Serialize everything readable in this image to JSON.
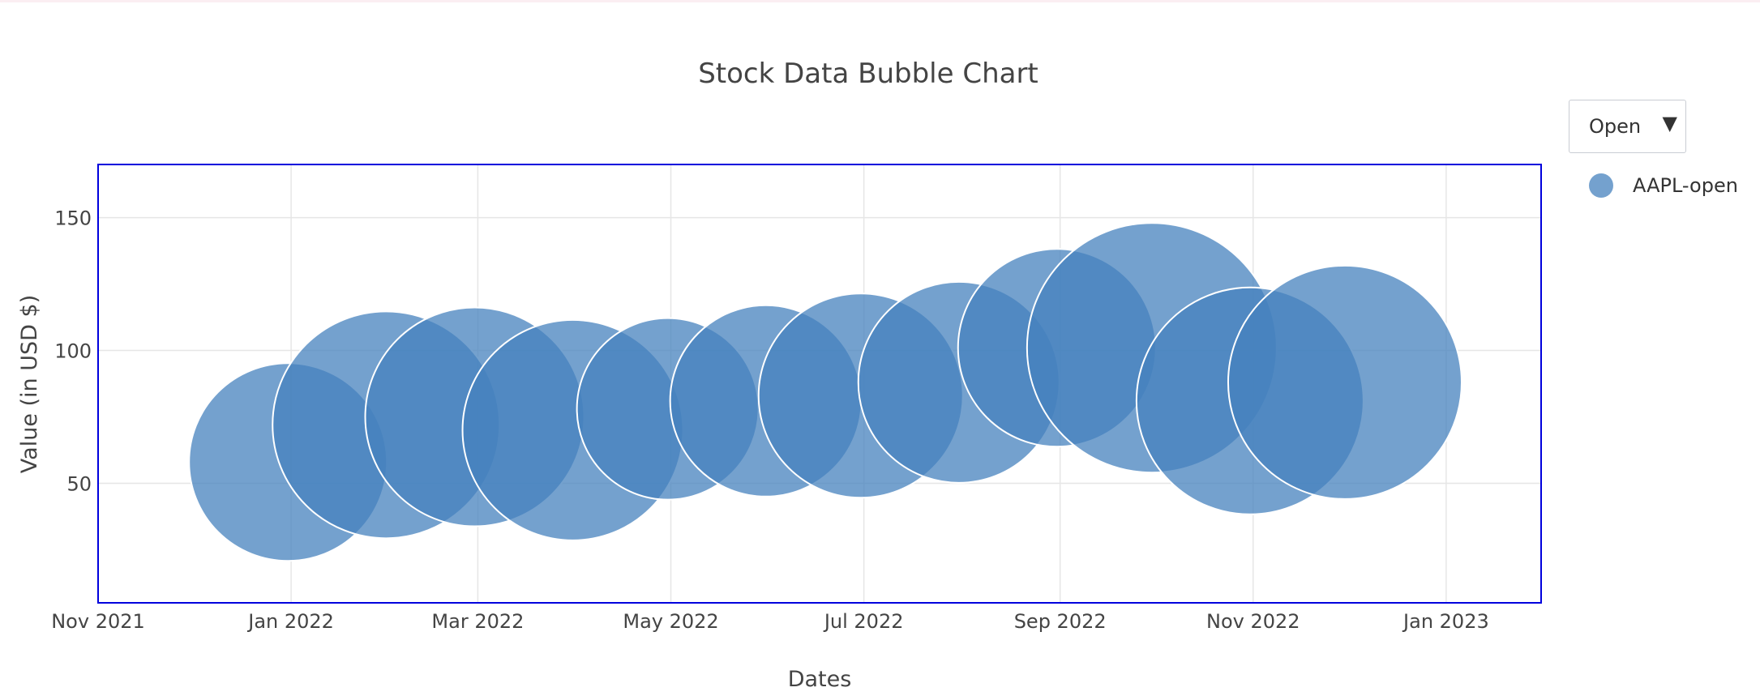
{
  "chart_data": {
    "type": "scatter",
    "title": "Stock Data Bubble Chart",
    "xlabel": "Dates",
    "ylabel": "Value (in USD $)",
    "xlim": [
      "2021-11-01",
      "2023-01-31"
    ],
    "ylim": [
      5,
      170
    ],
    "x_ticks": [
      "2021-11-01",
      "2022-01-01",
      "2022-03-01",
      "2022-05-01",
      "2022-07-01",
      "2022-09-01",
      "2022-11-01",
      "2023-01-01"
    ],
    "x_tick_labels": [
      "Nov 2021",
      "Jan 2022",
      "Mar 2022",
      "May 2022",
      "Jul 2022",
      "Sep 2022",
      "Nov 2022",
      "Jan 2023"
    ],
    "y_ticks": [
      50,
      100,
      150
    ],
    "y_tick_labels": [
      "50",
      "100",
      "150"
    ],
    "grid": true,
    "legend_position": "top-right",
    "series": [
      {
        "name": "AAPL-open",
        "color": "#4682be",
        "points": [
          {
            "x": "2021-12-31",
            "y": 58,
            "size": 122
          },
          {
            "x": "2022-01-31",
            "y": 72,
            "size": 140
          },
          {
            "x": "2022-02-28",
            "y": 75,
            "size": 135
          },
          {
            "x": "2022-03-31",
            "y": 70,
            "size": 136
          },
          {
            "x": "2022-04-30",
            "y": 78,
            "size": 112
          },
          {
            "x": "2022-05-31",
            "y": 81,
            "size": 118
          },
          {
            "x": "2022-06-30",
            "y": 83,
            "size": 126
          },
          {
            "x": "2022-07-31",
            "y": 88,
            "size": 124
          },
          {
            "x": "2022-08-31",
            "y": 101,
            "size": 122
          },
          {
            "x": "2022-09-30",
            "y": 101,
            "size": 154
          },
          {
            "x": "2022-10-31",
            "y": 81,
            "size": 140
          },
          {
            "x": "2022-11-30",
            "y": 88,
            "size": 144
          }
        ]
      }
    ]
  },
  "controls": {
    "dropdown_value": "Open",
    "dropdown_arrow": "▼"
  }
}
